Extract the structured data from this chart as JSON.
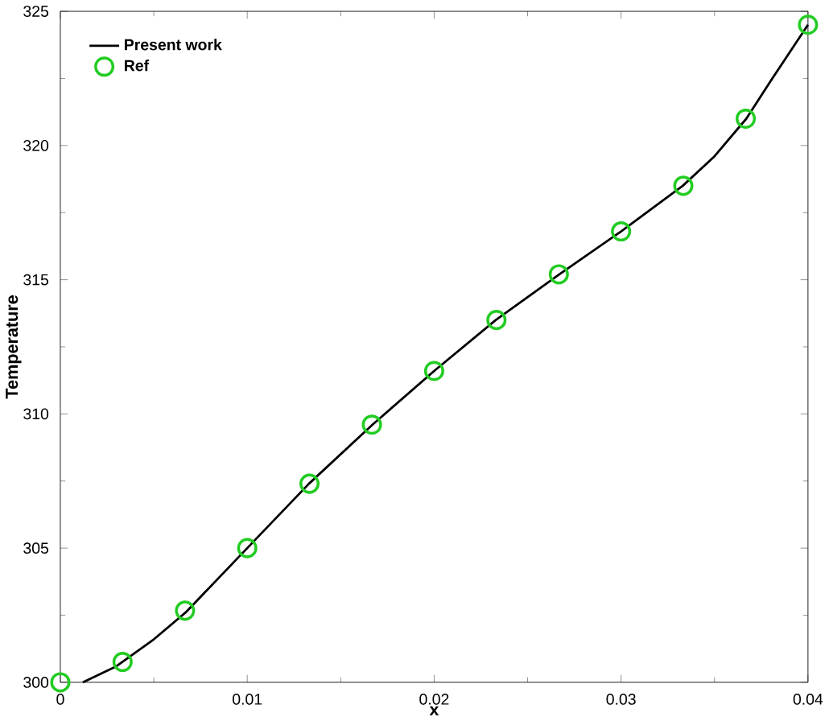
{
  "chart_data": {
    "type": "line",
    "xlabel": "x",
    "ylabel": "Temperature",
    "xlim": [
      0,
      0.04
    ],
    "ylim": [
      300,
      325
    ],
    "xticks": [
      0,
      0.01,
      0.02,
      0.03,
      0.04
    ],
    "yticks": [
      300,
      305,
      310,
      315,
      320,
      325
    ],
    "grid": false,
    "legend": "top left",
    "series": [
      {
        "name": "Present work",
        "color": "#000000",
        "marker": "none",
        "line_style": "solid",
        "x": [
          0.0012,
          0.003,
          0.005,
          0.0067,
          0.01,
          0.0133,
          0.0167,
          0.02,
          0.0233,
          0.0267,
          0.03,
          0.0333,
          0.035,
          0.0367,
          0.038,
          0.04
        ],
        "values": [
          300,
          300.6,
          301.6,
          302.6,
          305.0,
          307.4,
          309.6,
          311.6,
          313.5,
          315.2,
          316.8,
          318.5,
          319.6,
          321.0,
          322.4,
          324.5
        ]
      },
      {
        "name": "Ref",
        "type": "scatter",
        "color": "#22cc22",
        "marker": "circle",
        "x": [
          0,
          0.00333,
          0.00667,
          0.01,
          0.01333,
          0.01667,
          0.02,
          0.02333,
          0.02667,
          0.03,
          0.03333,
          0.03667,
          0.04
        ],
        "values": [
          300,
          300.76,
          302.67,
          305.0,
          307.4,
          309.6,
          311.6,
          313.5,
          315.2,
          316.8,
          318.5,
          321.0,
          324.5
        ]
      }
    ]
  }
}
